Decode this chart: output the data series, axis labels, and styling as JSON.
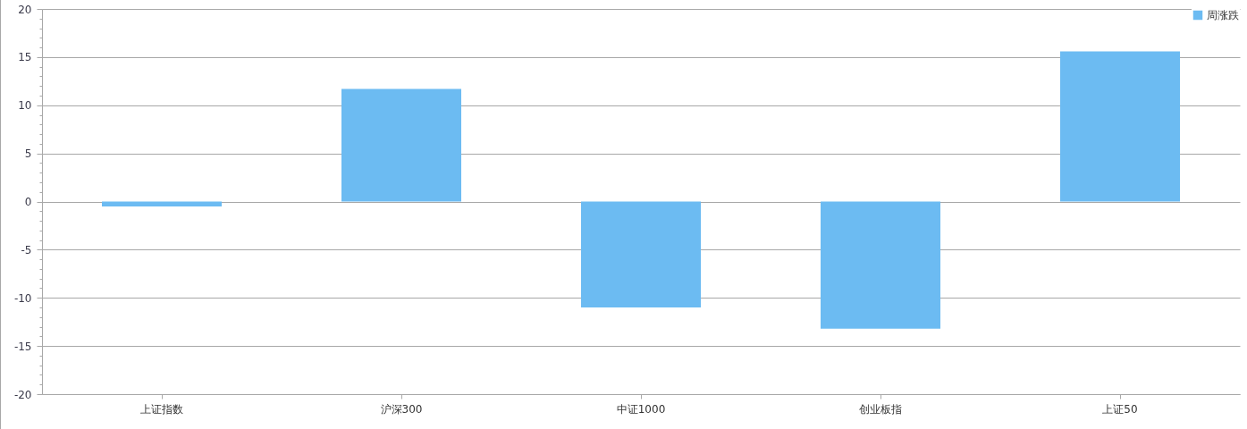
{
  "chart_data": {
    "type": "bar",
    "categories": [
      "上证指数",
      "沪深300",
      "中证1000",
      "创业板指",
      "上证50"
    ],
    "series": [
      {
        "name": "周涨跌",
        "color": "#6cbbf2",
        "values": [
          -0.5,
          11.7,
          -11.0,
          -13.2,
          15.6
        ]
      }
    ],
    "ylim": [
      -20,
      20
    ],
    "yticks": [
      -20,
      {
        "value": -19,
        "label": null
      },
      {
        "value": -18,
        "label": null
      },
      {
        "value": -17,
        "label": null
      },
      {
        "value": -16,
        "label": null
      },
      -15,
      {
        "value": -14,
        "label": null
      },
      {
        "value": -13,
        "label": null
      },
      {
        "value": -12,
        "label": null
      },
      {
        "value": -11,
        "label": null
      },
      -10,
      {
        "value": -9,
        "label": null
      },
      {
        "value": -8,
        "label": null
      },
      {
        "value": -7,
        "label": null
      },
      {
        "value": -6,
        "label": null
      },
      -5,
      {
        "value": -4,
        "label": null
      },
      {
        "value": -3,
        "label": null
      },
      {
        "value": -2,
        "label": null
      },
      {
        "value": -1,
        "label": null
      },
      0,
      {
        "value": 1,
        "label": null
      },
      {
        "value": 2,
        "label": null
      },
      {
        "value": 3,
        "label": null
      },
      {
        "value": 4,
        "label": null
      },
      5,
      {
        "value": 6,
        "label": null
      },
      {
        "value": 7,
        "label": null
      },
      {
        "value": 8,
        "label": null
      },
      {
        "value": 9,
        "label": null
      },
      10,
      {
        "value": 11,
        "label": null
      },
      {
        "value": 12,
        "label": null
      },
      {
        "value": 13,
        "label": null
      },
      {
        "value": 14,
        "label": null
      },
      15,
      {
        "value": 16,
        "label": null
      },
      {
        "value": 17,
        "label": null
      },
      {
        "value": 18,
        "label": null
      },
      {
        "value": 19,
        "label": null
      },
      20
    ],
    "grid": "y",
    "legend": "top right"
  }
}
